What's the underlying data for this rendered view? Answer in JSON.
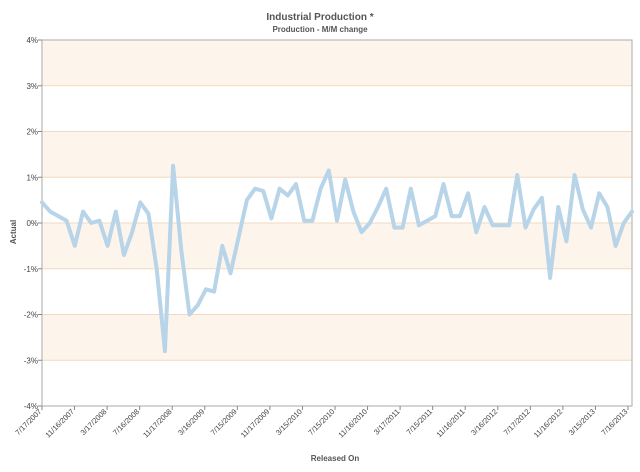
{
  "chart_data": {
    "type": "line",
    "title": "Industrial Production *",
    "subtitle": "Production - M/M change",
    "xlabel": "Released On",
    "ylabel": "Actual",
    "ylim": [
      -4,
      4
    ],
    "y_ticks": [
      "4%",
      "3%",
      "2%",
      "1%",
      "0%",
      "-1%",
      "-2%",
      "-3%",
      "-4%"
    ],
    "y_tick_values": [
      4,
      3,
      2,
      1,
      0,
      -1,
      -2,
      -3,
      -4
    ],
    "x_tick_labels": [
      "7/17/2007",
      "11/16/2007",
      "3/17/2008",
      "7/16/2008",
      "11/17/2008",
      "3/16/2009",
      "7/15/2009",
      "11/17/2009",
      "3/15/2010",
      "7/15/2010",
      "11/16/2010",
      "3/17/2011",
      "7/15/2011",
      "11/16/2011",
      "3/16/2012",
      "7/17/2012",
      "11/16/2012",
      "3/15/2013",
      "7/16/2013"
    ],
    "grid": true,
    "band_colors": [
      "#fdf5ec",
      "#ffffff"
    ],
    "series": [
      {
        "color": "#b8d4e8",
        "values": [
          0.45,
          0.25,
          0.15,
          0.05,
          -0.5,
          0.25,
          0.0,
          0.05,
          -0.5,
          0.25,
          -0.7,
          -0.2,
          0.45,
          0.2,
          -1.0,
          -2.8,
          1.25,
          -0.6,
          -2.0,
          -1.8,
          -1.45,
          -1.5,
          -0.5,
          -1.1,
          -0.3,
          0.5,
          0.75,
          0.7,
          0.1,
          0.75,
          0.6,
          0.85,
          0.05,
          0.05,
          0.75,
          1.15,
          0.05,
          0.95,
          0.25,
          -0.2,
          0.0,
          0.35,
          0.75,
          -0.1,
          -0.1,
          0.75,
          -0.05,
          0.05,
          0.15,
          0.85,
          0.15,
          0.15,
          0.65,
          -0.2,
          0.35,
          -0.05,
          -0.05,
          -0.05,
          1.05,
          -0.1,
          0.3,
          0.55,
          -1.2,
          0.35,
          -0.4,
          1.05,
          0.3,
          -0.1,
          0.65,
          0.35,
          -0.5,
          0.0,
          0.25
        ]
      }
    ]
  }
}
